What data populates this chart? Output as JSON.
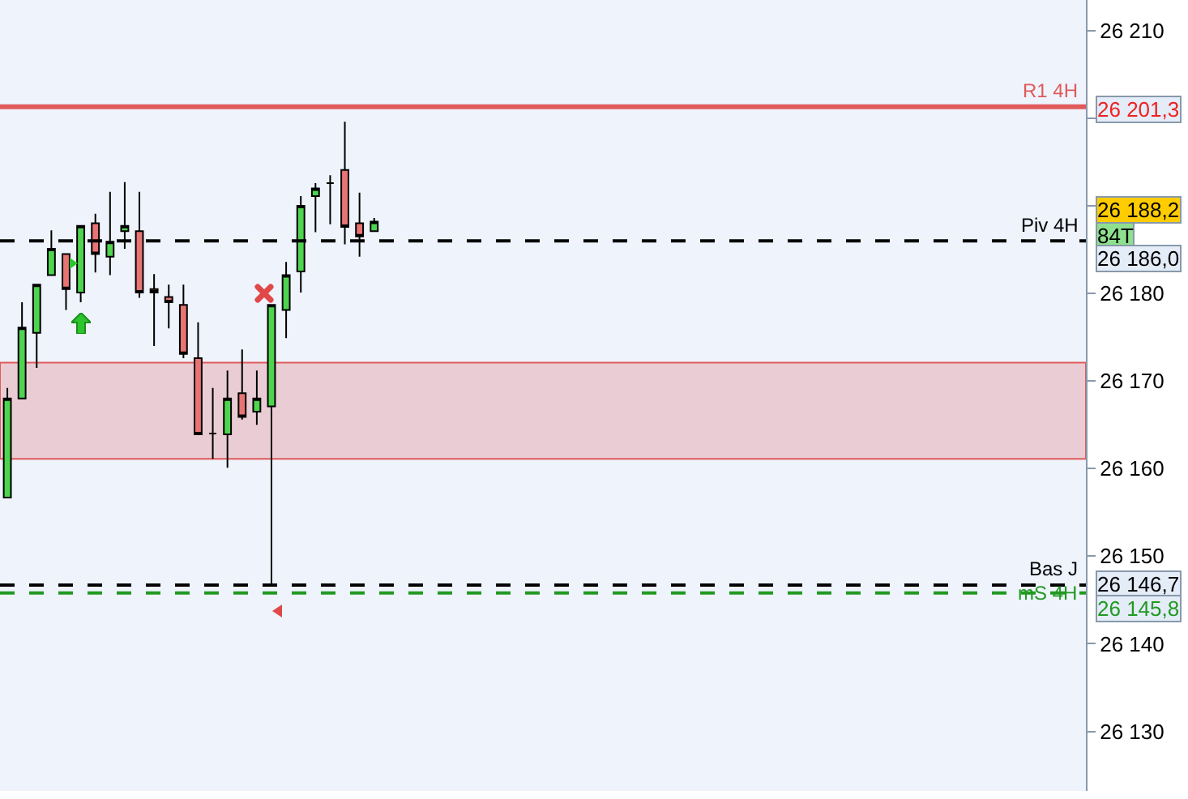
{
  "chart_data": {
    "type": "candlestick",
    "categories": [
      null,
      null,
      null,
      null,
      null,
      null,
      null,
      null,
      null,
      null,
      null,
      null,
      null,
      null,
      null,
      null,
      null,
      null,
      null,
      null,
      null,
      null,
      null,
      null,
      null,
      null,
      null,
      null,
      null,
      null,
      null,
      null,
      null,
      null,
      null,
      null,
      null,
      null,
      null,
      null,
      null,
      null,
      null,
      null,
      null,
      null,
      null,
      null,
      null,
      null,
      null,
      null,
      null,
      null,
      null,
      null,
      null,
      null,
      null,
      null,
      null,
      null,
      null,
      null,
      null,
      null,
      null,
      null,
      null,
      null,
      null,
      null,
      null,
      null
    ],
    "ohlc": [
      [
        26156.7,
        26169.2,
        26156.7,
        26168.0
      ],
      [
        26168.0,
        26179.0,
        26168.0,
        26176.1
      ],
      [
        26175.5,
        26181.0,
        26171.5,
        26181.0
      ],
      [
        26182.1,
        26187.2,
        26182.1,
        26185.1
      ],
      [
        26184.5,
        26184.5,
        26178.1,
        26180.5
      ],
      [
        26180.1,
        26187.7,
        26179.0,
        26187.7
      ],
      [
        26188.0,
        26189.1,
        26182.4,
        26184.5
      ],
      [
        26184.2,
        26191.6,
        26182.1,
        26185.9
      ],
      [
        26187.1,
        26192.7,
        26185.1,
        26187.7
      ],
      [
        26187.1,
        26191.6,
        26179.5,
        26180.1
      ],
      [
        26180.5,
        26182.2,
        26174.0,
        26180.1
      ],
      [
        26179.6,
        26181.0,
        26176.0,
        26179.0
      ],
      [
        26178.7,
        26181.0,
        26172.6,
        26173.1
      ],
      [
        26172.6,
        26176.7,
        26163.9,
        26163.9
      ],
      [
        26164.0,
        26169.2,
        26161.1,
        26164.0
      ],
      [
        26163.9,
        26171.2,
        26160.1,
        26168.0
      ],
      [
        26168.6,
        26173.6,
        26165.6,
        26165.9
      ],
      [
        26166.5,
        26171.2,
        26165.0,
        26168.0
      ],
      [
        26167.1,
        26178.7,
        26146.6,
        26178.7
      ],
      [
        26178.1,
        26183.6,
        26174.9,
        26182.1
      ],
      [
        26182.5,
        26191.1,
        26180.1,
        26190.0
      ],
      [
        26191.1,
        26192.6,
        26187.0,
        26192.0
      ],
      [
        26192.6,
        26193.5,
        26187.9,
        26192.6
      ],
      [
        26194.1,
        26199.6,
        26185.6,
        26187.6
      ],
      [
        26188.0,
        26191.5,
        26184.2,
        26186.5
      ],
      [
        26187.1,
        26188.6,
        26187.1,
        26188.2
      ],
      null,
      null,
      null,
      null,
      null,
      null,
      null,
      null,
      null,
      null,
      null,
      null,
      null,
      null,
      null,
      null,
      null,
      null,
      null,
      null,
      null,
      null,
      null,
      null,
      null,
      null,
      null,
      null,
      null,
      null,
      null,
      null,
      null,
      null,
      null,
      null,
      null,
      null,
      null,
      null,
      null,
      null,
      null,
      null,
      null,
      null,
      null,
      null
    ],
    "ylim": [
      26123.2,
      26213.5
    ],
    "yticks": [
      {
        "value": 26130,
        "label": "26 130"
      },
      {
        "value": 26140,
        "label": "26 140"
      },
      {
        "value": 26150,
        "label": "26 150"
      },
      {
        "value": 26160,
        "label": "26 160"
      },
      {
        "value": 26170,
        "label": "26 170"
      },
      {
        "value": 26180,
        "label": "26 180"
      },
      {
        "value": 26190,
        "label": null
      },
      {
        "value": 26200,
        "label": null
      },
      {
        "value": 26210,
        "label": "26 210"
      }
    ],
    "tick_labels": "y",
    "grid": false,
    "ref_lines": [
      {
        "axis": "y",
        "value": 26201.3,
        "label": "R1 4H",
        "color": "#e05a5a",
        "line_style": "solid"
      },
      {
        "axis": "y",
        "value": 26186.0,
        "label": "Piv 4H",
        "color": "#000000",
        "line_style": "dashed"
      },
      {
        "axis": "y",
        "value": 26146.7,
        "label": "Bas J",
        "color": "#000000",
        "line_style": "dashed"
      },
      {
        "axis": "y",
        "value": 26145.8,
        "label": "mS 4H",
        "color": "#229922",
        "line_style": "dashed"
      }
    ],
    "bands": [
      {
        "axis": "y",
        "from": 26161.1,
        "to": 26172.1,
        "color": "#e05a5a"
      }
    ],
    "annotations": [
      "26 201,3",
      "26 188,2",
      "84T",
      "26 186,0",
      "26 146,7",
      "26 145,8"
    ]
  }
}
